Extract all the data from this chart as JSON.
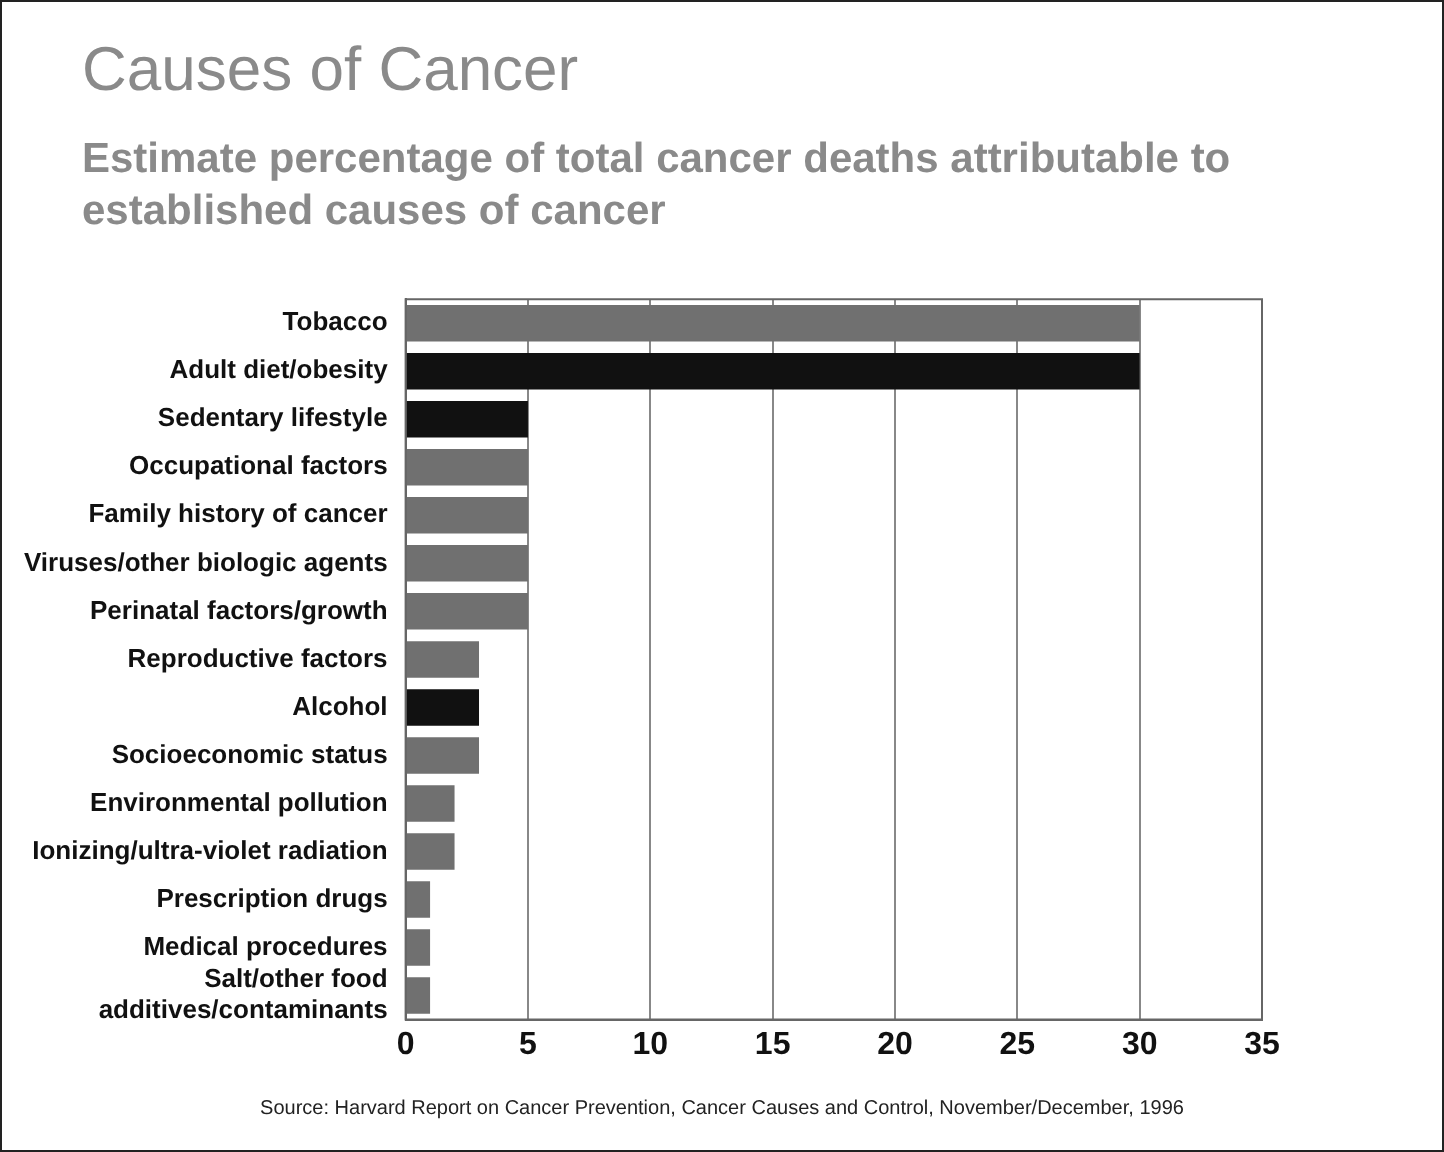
{
  "chart_data": {
    "type": "bar",
    "orientation": "horizontal",
    "title": "Causes of Cancer",
    "subtitle": "Estimate percentage of total cancer deaths attributable to established causes of cancer",
    "categories": [
      "Tobacco",
      "Adult diet/obesity",
      "Sedentary lifestyle",
      "Occupational factors",
      "Family history of cancer",
      "Viruses/other biologic agents",
      "Perinatal factors/growth",
      "Reproductive factors",
      "Alcohol",
      "Socioeconomic status",
      "Environmental pollution",
      "Ionizing/ultra-violet radiation",
      "Prescription drugs",
      "Medical procedures",
      "Salt/other food additives/contaminants"
    ],
    "values": [
      30,
      30,
      5,
      5,
      5,
      5,
      5,
      3,
      3,
      3,
      2,
      2,
      1,
      1,
      1
    ],
    "colors": [
      "#707070",
      "#111111",
      "#111111",
      "#707070",
      "#707070",
      "#707070",
      "#707070",
      "#707070",
      "#111111",
      "#707070",
      "#707070",
      "#707070",
      "#707070",
      "#707070",
      "#707070"
    ],
    "xlim": [
      0,
      35
    ],
    "xticks": [
      0,
      5,
      10,
      15,
      20,
      25,
      30,
      35
    ],
    "grid": "x",
    "annotations": [
      "Source: Harvard Report on Cancer Prevention, Cancer Causes and Control, November/December, 1996"
    ]
  }
}
